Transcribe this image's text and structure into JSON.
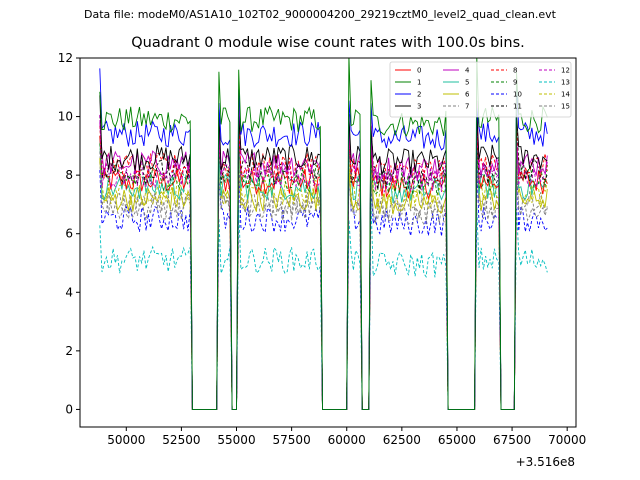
{
  "header": {
    "suptitle": "Data file: modeM0/AS1A10_102T02_9000004200_29219cztM0_level2_quad_clean.evt"
  },
  "chart_data": {
    "type": "line",
    "title": "Quadrant 0 module wise count rates with 100.0s bins.",
    "xlabel": "",
    "ylabel": "",
    "offset_label": "+3.516e8",
    "xlim": [
      47900,
      70400
    ],
    "ylim": [
      -0.6,
      12.0
    ],
    "xticks": [
      50000,
      52500,
      55000,
      57500,
      60000,
      62500,
      65000,
      67500,
      70000
    ],
    "xtick_labels": [
      "50000",
      "52500",
      "55000",
      "57500",
      "60000",
      "62500",
      "65000",
      "67500",
      "70000"
    ],
    "yticks": [
      0,
      2,
      4,
      6,
      8,
      10,
      12
    ],
    "ytick_labels": [
      "0",
      "2",
      "4",
      "6",
      "8",
      "10",
      "12"
    ],
    "legend_position": "upper-right",
    "legend_columns": 4,
    "segments": [
      {
        "start": 48800,
        "end": 52900,
        "kind": "active"
      },
      {
        "start": 53000,
        "end": 54100,
        "kind": "off"
      },
      {
        "start": 54200,
        "end": 54700,
        "kind": "active"
      },
      {
        "start": 54800,
        "end": 55000,
        "kind": "off"
      },
      {
        "start": 55100,
        "end": 58800,
        "kind": "active"
      },
      {
        "start": 58900,
        "end": 60000,
        "kind": "off"
      },
      {
        "start": 60100,
        "end": 60600,
        "kind": "active"
      },
      {
        "start": 60700,
        "end": 61000,
        "kind": "off"
      },
      {
        "start": 61100,
        "end": 64500,
        "kind": "active"
      },
      {
        "start": 64600,
        "end": 65800,
        "kind": "off"
      },
      {
        "start": 65900,
        "end": 66900,
        "kind": "active"
      },
      {
        "start": 67000,
        "end": 67600,
        "kind": "off"
      },
      {
        "start": 67700,
        "end": 69100,
        "kind": "active"
      }
    ],
    "series": [
      {
        "name": "0",
        "color": "#ff0000",
        "dash": "solid",
        "mean_rate": 7.8
      },
      {
        "name": "1",
        "color": "#008000",
        "dash": "solid",
        "mean_rate": 9.9
      },
      {
        "name": "2",
        "color": "#0000ff",
        "dash": "solid",
        "mean_rate": 9.4
      },
      {
        "name": "3",
        "color": "#000000",
        "dash": "solid",
        "mean_rate": 8.6
      },
      {
        "name": "4",
        "color": "#bf00bf",
        "dash": "solid",
        "mean_rate": 8.4
      },
      {
        "name": "5",
        "color": "#1fbf9f",
        "dash": "solid",
        "mean_rate": 7.6
      },
      {
        "name": "6",
        "color": "#bfbf00",
        "dash": "solid",
        "mean_rate": 7.2
      },
      {
        "name": "7",
        "color": "#808080",
        "dash": "dashed",
        "mean_rate": 6.9
      },
      {
        "name": "8",
        "color": "#ff0000",
        "dash": "dashed",
        "mean_rate": 8.3
      },
      {
        "name": "9",
        "color": "#008000",
        "dash": "dashed",
        "mean_rate": 7.9
      },
      {
        "name": "10",
        "color": "#0000ff",
        "dash": "dashed",
        "mean_rate": 6.5
      },
      {
        "name": "11",
        "color": "#000000",
        "dash": "dashed",
        "mean_rate": 8.1
      },
      {
        "name": "12",
        "color": "#bf00bf",
        "dash": "dashed",
        "mean_rate": 8.0
      },
      {
        "name": "13",
        "color": "#00bfbf",
        "dash": "dashed",
        "mean_rate": 5.1
      },
      {
        "name": "14",
        "color": "#bfbf00",
        "dash": "dashed",
        "mean_rate": 7.4
      },
      {
        "name": "15",
        "color": "#808080",
        "dash": "dashed",
        "mean_rate": 7.0
      }
    ]
  }
}
